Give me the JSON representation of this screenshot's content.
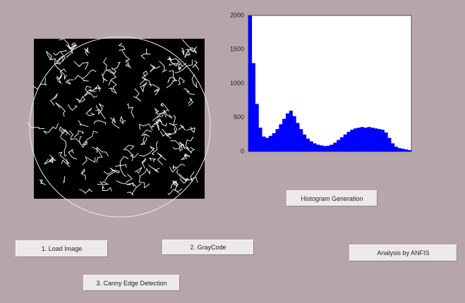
{
  "buttons": [
    "1. Load Image",
    "2. GrayCode",
    "3. Canny Edge Detection",
    "Histogram Generation",
    "Analysis by ANFIS"
  ],
  "chart_data": {
    "type": "histogram",
    "color": "#0000ff",
    "values": [
      2000,
      1300,
      700,
      350,
      220,
      200,
      230,
      270,
      330,
      400,
      480,
      560,
      600,
      520,
      420,
      330,
      250,
      190,
      150,
      120,
      100,
      90,
      80,
      85,
      100,
      130,
      170,
      210,
      250,
      290,
      320,
      340,
      350,
      360,
      350,
      360,
      350,
      340,
      330,
      320,
      280,
      200,
      120,
      70,
      50,
      40,
      30,
      20
    ],
    "ylim": [
      0,
      2000
    ],
    "yticks": [
      0,
      500,
      1000,
      1500,
      2000
    ]
  }
}
